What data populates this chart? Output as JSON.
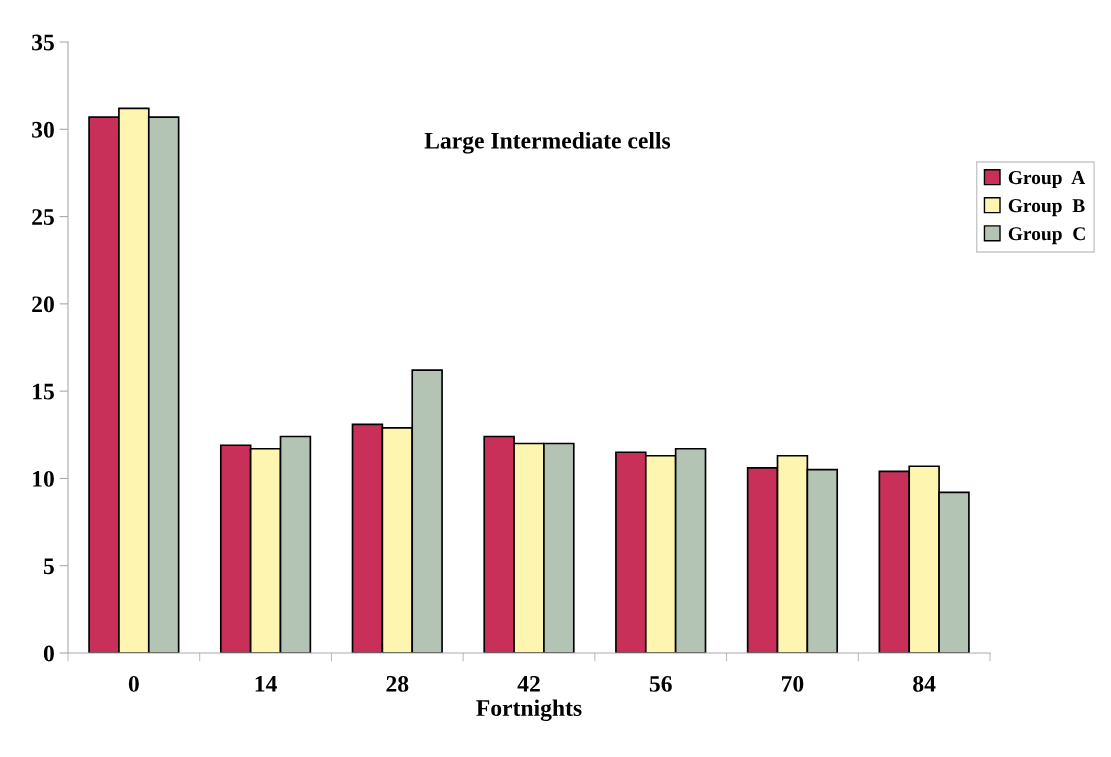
{
  "chart_data": {
    "type": "bar",
    "title": "Large Intermediate cells",
    "xlabel": "Fortnights",
    "categories": [
      "0",
      "14",
      "28",
      "42",
      "56",
      "70",
      "84"
    ],
    "series": [
      {
        "name": "Group  A",
        "color": "#c8305a",
        "values": [
          30.7,
          11.9,
          13.1,
          12.4,
          11.5,
          10.6,
          10.4
        ]
      },
      {
        "name": "Group  B",
        "color": "#fdf5b0",
        "values": [
          31.2,
          11.7,
          12.9,
          12.0,
          11.3,
          11.3,
          10.7
        ]
      },
      {
        "name": "Group  C",
        "color": "#b4c4b4",
        "values": [
          30.7,
          12.4,
          16.2,
          12.0,
          11.7,
          10.5,
          9.2
        ]
      }
    ],
    "ylim": [
      0,
      35
    ],
    "yticks": [
      0,
      5,
      10,
      15,
      20,
      25,
      30,
      35
    ],
    "grid": false,
    "legend": "right"
  }
}
